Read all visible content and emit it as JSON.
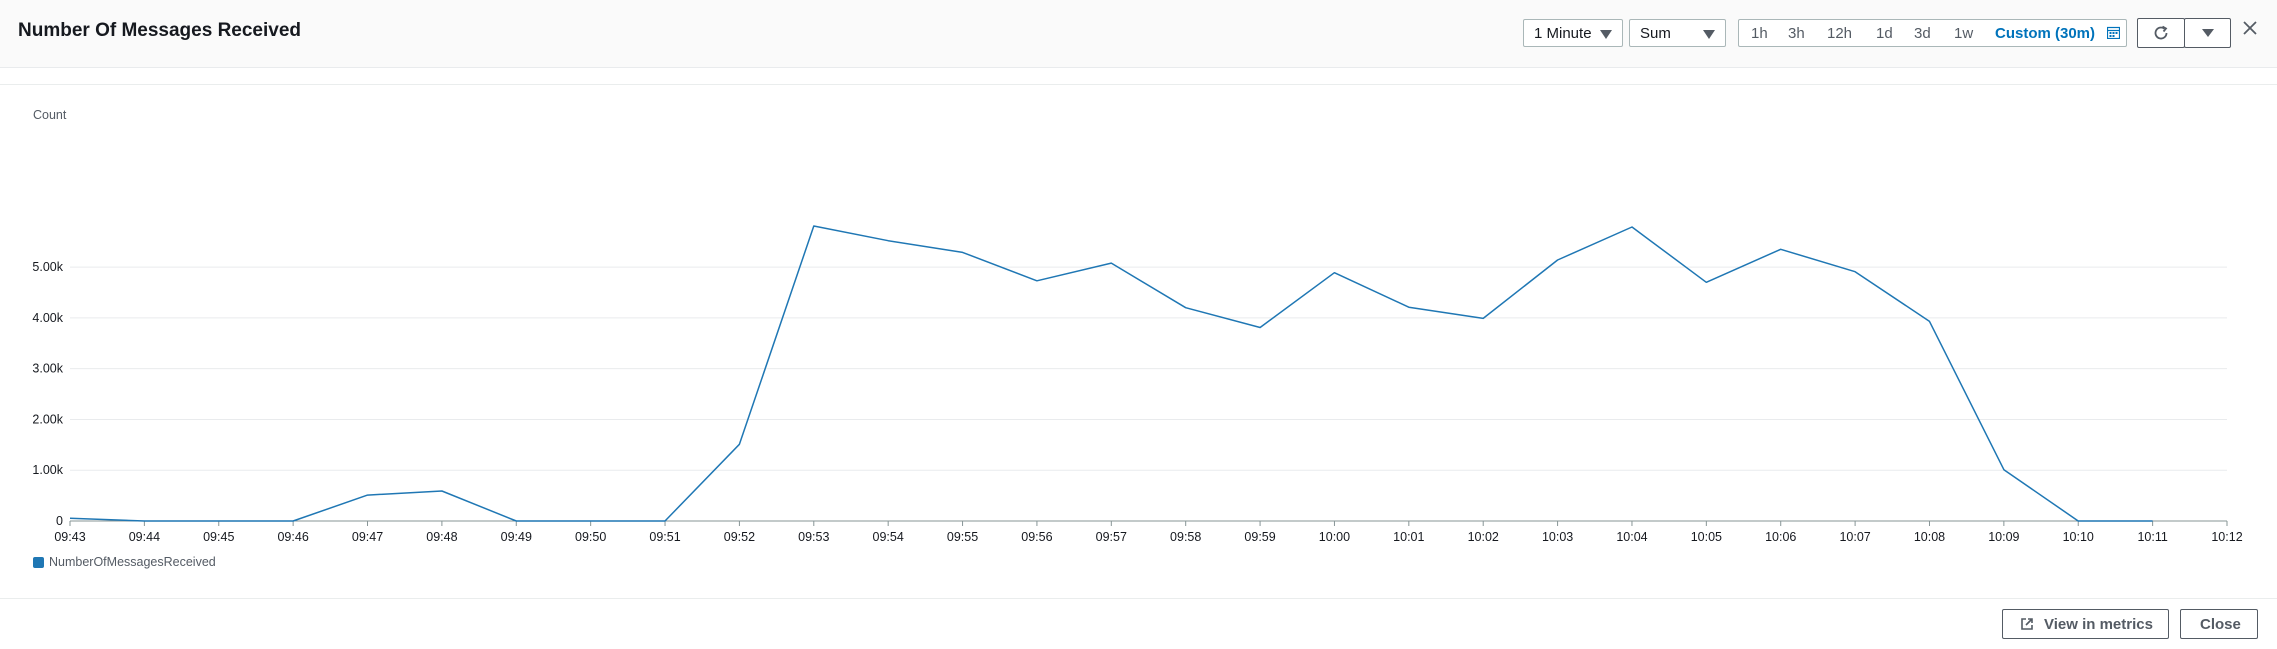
{
  "header": {
    "title": "Number Of Messages Received",
    "period": "1 Minute",
    "statistic": "Sum",
    "ranges": [
      "1h",
      "3h",
      "12h",
      "1d",
      "3d",
      "1w"
    ],
    "custom_range": "Custom (30m)"
  },
  "footer": {
    "view_in_metrics": "View in metrics",
    "close": "Close"
  },
  "colors": {
    "series": "#1f77b4",
    "accent": "#0073bb"
  },
  "chart_data": {
    "type": "line",
    "ylabel": "Count",
    "y_ticks": [
      {
        "value": 0,
        "label": "0"
      },
      {
        "value": 1000,
        "label": "1.00k"
      },
      {
        "value": 2000,
        "label": "2.00k"
      },
      {
        "value": 3000,
        "label": "3.00k"
      },
      {
        "value": 4000,
        "label": "4.00k"
      },
      {
        "value": 5000,
        "label": "5.00k"
      }
    ],
    "ylim": [
      0,
      6200
    ],
    "x": [
      "09:43",
      "09:44",
      "09:45",
      "09:46",
      "09:47",
      "09:48",
      "09:49",
      "09:50",
      "09:51",
      "09:52",
      "09:53",
      "09:54",
      "09:55",
      "09:56",
      "09:57",
      "09:58",
      "09:59",
      "10:00",
      "10:01",
      "10:02",
      "10:03",
      "10:04",
      "10:05",
      "10:06",
      "10:07",
      "10:08",
      "10:09",
      "10:10",
      "10:11",
      "10:12"
    ],
    "series": [
      {
        "name": "NumberOfMessagesReceived",
        "values": [
          55,
          0,
          0,
          0,
          510,
          590,
          0,
          0,
          0,
          1510,
          5810,
          5520,
          5290,
          4730,
          5080,
          4200,
          3810,
          4890,
          4210,
          3990,
          5140,
          5790,
          4700,
          5350,
          4910,
          3930,
          1010,
          0,
          0,
          null
        ]
      }
    ],
    "grid": "horizontal",
    "legend": "bottom-left"
  }
}
